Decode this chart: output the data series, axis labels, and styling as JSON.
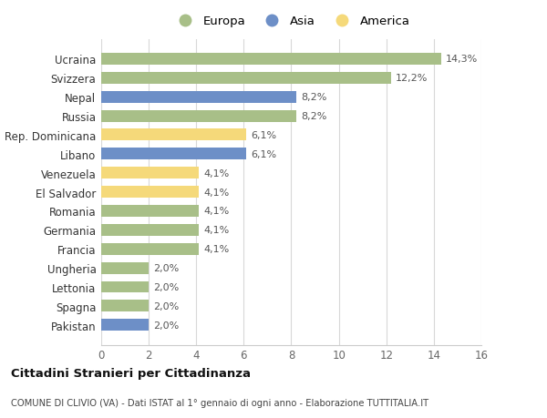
{
  "categories": [
    "Pakistan",
    "Spagna",
    "Lettonia",
    "Ungheria",
    "Francia",
    "Germania",
    "Romania",
    "El Salvador",
    "Venezuela",
    "Libano",
    "Rep. Dominicana",
    "Russia",
    "Nepal",
    "Svizzera",
    "Ucraina"
  ],
  "values": [
    2.0,
    2.0,
    2.0,
    2.0,
    4.1,
    4.1,
    4.1,
    4.1,
    4.1,
    6.1,
    6.1,
    8.2,
    8.2,
    12.2,
    14.3
  ],
  "colors": [
    "#6d8fc7",
    "#a8bf88",
    "#a8bf88",
    "#a8bf88",
    "#a8bf88",
    "#a8bf88",
    "#a8bf88",
    "#f5d97a",
    "#f5d97a",
    "#6d8fc7",
    "#f5d97a",
    "#a8bf88",
    "#6d8fc7",
    "#a8bf88",
    "#a8bf88"
  ],
  "labels": [
    "2,0%",
    "2,0%",
    "2,0%",
    "2,0%",
    "4,1%",
    "4,1%",
    "4,1%",
    "4,1%",
    "4,1%",
    "6,1%",
    "6,1%",
    "8,2%",
    "8,2%",
    "12,2%",
    "14,3%"
  ],
  "legend": [
    {
      "label": "Europa",
      "color": "#a8bf88"
    },
    {
      "label": "Asia",
      "color": "#6d8fc7"
    },
    {
      "label": "America",
      "color": "#f5d97a"
    }
  ],
  "xlim": [
    0,
    16
  ],
  "xticks": [
    0,
    2,
    4,
    6,
    8,
    10,
    12,
    14,
    16
  ],
  "title1": "Cittadini Stranieri per Cittadinanza",
  "title2": "COMUNE DI CLIVIO (VA) - Dati ISTAT al 1° gennaio di ogni anno - Elaborazione TUTTITALIA.IT",
  "background_color": "#ffffff",
  "grid_color": "#d8d8d8"
}
